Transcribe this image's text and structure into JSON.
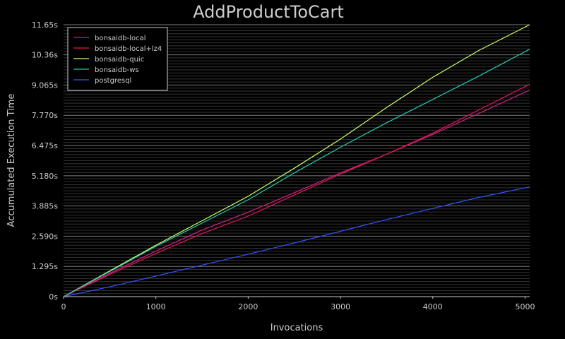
{
  "chart_data": {
    "type": "line",
    "title": "AddProductToCart",
    "xlabel": "Invocations",
    "ylabel": "Accumulated Execution Time",
    "xlim": [
      0,
      5050
    ],
    "ylim": [
      0,
      11.65
    ],
    "x_ticks": [
      0,
      1000,
      2000,
      3000,
      4000,
      5000
    ],
    "x_tick_labels": [
      "0",
      "1000",
      "2000",
      "3000",
      "4000",
      "5000"
    ],
    "y_ticks": [
      0,
      1.295,
      2.59,
      3.885,
      5.18,
      6.475,
      7.77,
      9.065,
      10.36,
      11.65
    ],
    "y_tick_labels": [
      "0s",
      "1.295s",
      "2.590s",
      "3.885s",
      "5.180s",
      "6.475s",
      "7.770s",
      "9.065s",
      "10.36s",
      "11.65s"
    ],
    "grid": true,
    "legend_position": "top-left",
    "background_color": "#000000",
    "text_color": "#cccccc",
    "series": [
      {
        "name": "bonsaidb-local",
        "color": "#cc2288",
        "x": [
          0,
          500,
          1000,
          1500,
          2000,
          2500,
          3000,
          3500,
          4000,
          4500,
          5050
        ],
        "y": [
          0,
          1.0,
          1.95,
          2.85,
          3.62,
          4.45,
          5.3,
          6.1,
          6.95,
          7.85,
          8.85
        ]
      },
      {
        "name": "bonsaidb-local+lz4",
        "color": "#ee1155",
        "x": [
          0,
          500,
          1000,
          1500,
          2000,
          2500,
          3000,
          3500,
          4000,
          4500,
          5050
        ],
        "y": [
          0,
          0.95,
          1.85,
          2.7,
          3.45,
          4.35,
          5.25,
          6.1,
          7.0,
          8.0,
          9.1
        ]
      },
      {
        "name": "bonsaidb-quic",
        "color": "#ccff66",
        "x": [
          0,
          500,
          1000,
          1500,
          2000,
          2500,
          3000,
          3500,
          4000,
          4500,
          5050
        ],
        "y": [
          0,
          1.1,
          2.2,
          3.25,
          4.3,
          5.5,
          6.75,
          8.1,
          9.4,
          10.55,
          11.65
        ]
      },
      {
        "name": "bonsaidb-ws",
        "color": "#22ccaa",
        "x": [
          0,
          500,
          1000,
          1500,
          2000,
          2500,
          3000,
          3500,
          4000,
          4500,
          5050
        ],
        "y": [
          0,
          1.07,
          2.15,
          3.15,
          4.15,
          5.3,
          6.4,
          7.45,
          8.45,
          9.45,
          10.6
        ]
      },
      {
        "name": "postgresql",
        "color": "#3355ff",
        "x": [
          0,
          500,
          1000,
          1500,
          2000,
          2500,
          3000,
          3500,
          4000,
          4500,
          5050
        ],
        "y": [
          0,
          0.42,
          0.88,
          1.35,
          1.82,
          2.3,
          2.8,
          3.3,
          3.78,
          4.25,
          4.7
        ]
      }
    ]
  }
}
